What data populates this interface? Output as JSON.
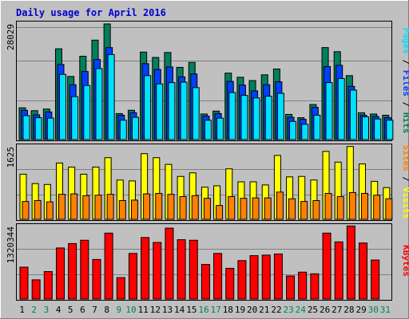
{
  "title": "Daily usage for April 2016",
  "colors": {
    "hits": "#00805c",
    "files": "#0040ff",
    "pages": "#00e0ff",
    "visits": "#ffff00",
    "sites": "#ff8000",
    "kbytes": "#ff0000",
    "weekday": "#000000",
    "weekend": "#00805c"
  },
  "chart_data": [
    {
      "type": "bar",
      "panel": "hits-files-pages",
      "x": [
        "1",
        "2",
        "3",
        "4",
        "5",
        "6",
        "7",
        "8",
        "9",
        "10",
        "11",
        "12",
        "13",
        "14",
        "15",
        "16",
        "17",
        "18",
        "19",
        "20",
        "21",
        "22",
        "23",
        "24",
        "25",
        "26",
        "27",
        "28",
        "29",
        "30",
        "31"
      ],
      "weekend_days": [
        "2",
        "3",
        "9",
        "10",
        "16",
        "17",
        "23",
        "24",
        "30",
        "31"
      ],
      "ymax_label": "28029",
      "ylim": [
        0,
        28029
      ],
      "series": [
        {
          "name": "Hits",
          "values": [
            7700,
            7000,
            7400,
            22000,
            15300,
            20200,
            24100,
            28029,
            6300,
            7100,
            21200,
            19900,
            21100,
            17500,
            18700,
            6200,
            6900,
            16100,
            15100,
            14300,
            15700,
            17100,
            6100,
            5300,
            8500,
            22300,
            21300,
            15500,
            6500,
            6200,
            5900
          ]
        },
        {
          "name": "Files",
          "values": [
            7100,
            6000,
            6700,
            18200,
            13300,
            16500,
            19400,
            22300,
            5900,
            6500,
            18400,
            17000,
            17600,
            15200,
            15900,
            5700,
            6300,
            14100,
            13200,
            11800,
            13300,
            14000,
            5400,
            4900,
            7800,
            17700,
            18000,
            12900,
            5900,
            5600,
            5300
          ]
        },
        {
          "name": "Pages",
          "values": [
            5800,
            5300,
            5200,
            15800,
            10400,
            13100,
            17200,
            20600,
            4700,
            5400,
            15500,
            13500,
            13800,
            13900,
            12600,
            4700,
            5200,
            11400,
            10700,
            10100,
            10500,
            11200,
            4400,
            3700,
            5900,
            13800,
            14800,
            12000,
            5500,
            5000,
            4700
          ]
        }
      ]
    },
    {
      "type": "bar",
      "panel": "visits-sites",
      "x": [
        "1",
        "2",
        "3",
        "4",
        "5",
        "6",
        "7",
        "8",
        "9",
        "10",
        "11",
        "12",
        "13",
        "14",
        "15",
        "16",
        "17",
        "18",
        "19",
        "20",
        "21",
        "22",
        "23",
        "24",
        "25",
        "26",
        "27",
        "28",
        "29",
        "30",
        "31"
      ],
      "ymax_label": "1625",
      "ylim": [
        0,
        1625
      ],
      "series": [
        {
          "name": "Visits",
          "values": [
            1010,
            800,
            780,
            1260,
            1170,
            1010,
            1170,
            1380,
            880,
            860,
            1470,
            1380,
            1230,
            960,
            1040,
            720,
            750,
            1130,
            840,
            840,
            770,
            1430,
            950,
            960,
            880,
            1520,
            1280,
            1630,
            1240,
            850,
            710
          ]
        },
        {
          "name": "Sites",
          "values": [
            400,
            420,
            390,
            560,
            570,
            530,
            540,
            560,
            420,
            430,
            570,
            580,
            560,
            510,
            530,
            470,
            310,
            510,
            470,
            480,
            480,
            610,
            460,
            400,
            420,
            580,
            510,
            600,
            580,
            540,
            460
          ]
        }
      ]
    },
    {
      "type": "bar",
      "panel": "kbytes",
      "x": [
        "1",
        "2",
        "3",
        "4",
        "5",
        "6",
        "7",
        "8",
        "9",
        "10",
        "11",
        "12",
        "13",
        "14",
        "15",
        "16",
        "17",
        "18",
        "19",
        "20",
        "21",
        "22",
        "23",
        "24",
        "25",
        "26",
        "27",
        "28",
        "29",
        "30",
        "31"
      ],
      "ymax_label": "1320344",
      "ylim": [
        0,
        1320344
      ],
      "series": [
        {
          "name": "KBytes",
          "values": [
            580000,
            350000,
            500000,
            930000,
            1010000,
            1070000,
            720000,
            1200000,
            390000,
            830000,
            1120000,
            1030000,
            1290000,
            1080000,
            1070000,
            630000,
            830000,
            560000,
            700000,
            790000,
            800000,
            820000,
            420000,
            490000,
            460000,
            1200000,
            1040000,
            1330000,
            1020000,
            710000,
            0
          ]
        }
      ]
    }
  ],
  "side_labels": {
    "top": [
      {
        "text": "Pages",
        "color": "#00e0ff"
      },
      {
        "text": " / ",
        "color": "#000000"
      },
      {
        "text": "Files",
        "color": "#0040ff"
      },
      {
        "text": " / ",
        "color": "#000000"
      },
      {
        "text": "Hits",
        "color": "#00805c"
      }
    ],
    "mid": [
      {
        "text": "Sites",
        "color": "#ff8000"
      },
      {
        "text": " / ",
        "color": "#000000"
      },
      {
        "text": "Visits",
        "color": "#ffff00"
      }
    ],
    "bot": [
      {
        "text": "KBytes",
        "color": "#ff0000"
      }
    ]
  }
}
